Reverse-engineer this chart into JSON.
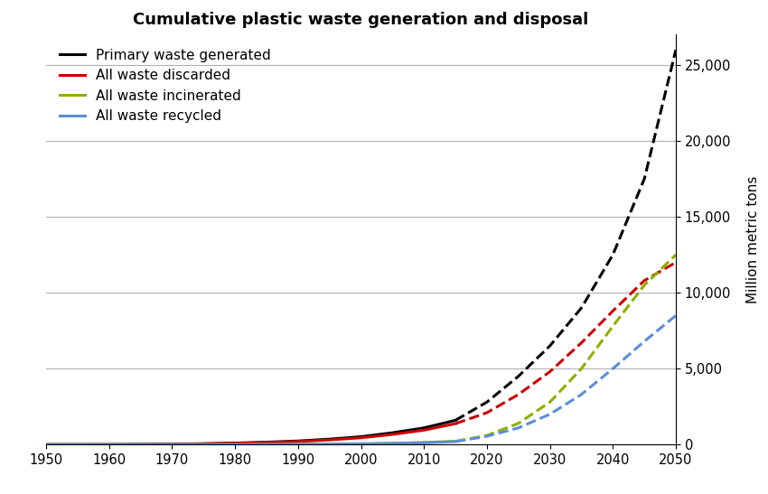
{
  "title": "Cumulative plastic waste generation and disposal",
  "ylabel": "Million metric tons",
  "xlim": [
    1950,
    2050
  ],
  "ylim": [
    0,
    27000
  ],
  "yticks": [
    0,
    5000,
    10000,
    15000,
    20000,
    25000
  ],
  "xticks": [
    1950,
    1960,
    1970,
    1980,
    1990,
    2000,
    2010,
    2020,
    2030,
    2040,
    2050
  ],
  "solid_end_year": 2015,
  "series": [
    {
      "label": "Primary waste generated",
      "color": "#000000",
      "years": [
        1950,
        1955,
        1960,
        1965,
        1970,
        1975,
        1980,
        1985,
        1990,
        1995,
        2000,
        2005,
        2010,
        2015,
        2020,
        2025,
        2030,
        2035,
        2040,
        2045,
        2050
      ],
      "values": [
        0,
        2,
        5,
        15,
        30,
        60,
        100,
        160,
        240,
        360,
        520,
        780,
        1100,
        1600,
        2800,
        4500,
        6500,
        9000,
        12500,
        17500,
        26000
      ]
    },
    {
      "label": "All waste discarded",
      "color": "#cc0000",
      "years": [
        1950,
        1955,
        1960,
        1965,
        1970,
        1975,
        1980,
        1985,
        1990,
        1995,
        2000,
        2005,
        2010,
        2015,
        2020,
        2025,
        2030,
        2035,
        2040,
        2045,
        2050
      ],
      "values": [
        0,
        2,
        4,
        12,
        25,
        50,
        85,
        135,
        205,
        310,
        450,
        670,
        950,
        1380,
        2100,
        3300,
        4800,
        6700,
        8800,
        10800,
        12000
      ]
    },
    {
      "label": "All waste incinerated",
      "color": "#8db000",
      "years": [
        1950,
        1955,
        1960,
        1965,
        1970,
        1975,
        1980,
        1985,
        1990,
        1995,
        2000,
        2005,
        2010,
        2015,
        2020,
        2025,
        2030,
        2035,
        2040,
        2045,
        2050
      ],
      "values": [
        0,
        0,
        0,
        0,
        1,
        3,
        6,
        12,
        20,
        35,
        55,
        90,
        140,
        220,
        600,
        1400,
        2800,
        5000,
        7800,
        10500,
        12500
      ]
    },
    {
      "label": "All waste recycled",
      "color": "#5b8dd9",
      "years": [
        1950,
        1955,
        1960,
        1965,
        1970,
        1975,
        1980,
        1985,
        1990,
        1995,
        2000,
        2005,
        2010,
        2015,
        2020,
        2025,
        2030,
        2035,
        2040,
        2045,
        2050
      ],
      "values": [
        0,
        0,
        0,
        0,
        0,
        1,
        3,
        7,
        15,
        28,
        45,
        75,
        120,
        200,
        550,
        1100,
        2000,
        3300,
        5000,
        6800,
        8500
      ]
    }
  ],
  "legend_loc": "upper left",
  "bg_color": "#ffffff",
  "grid_color": "#b0b0b0",
  "linewidth": 2.2
}
